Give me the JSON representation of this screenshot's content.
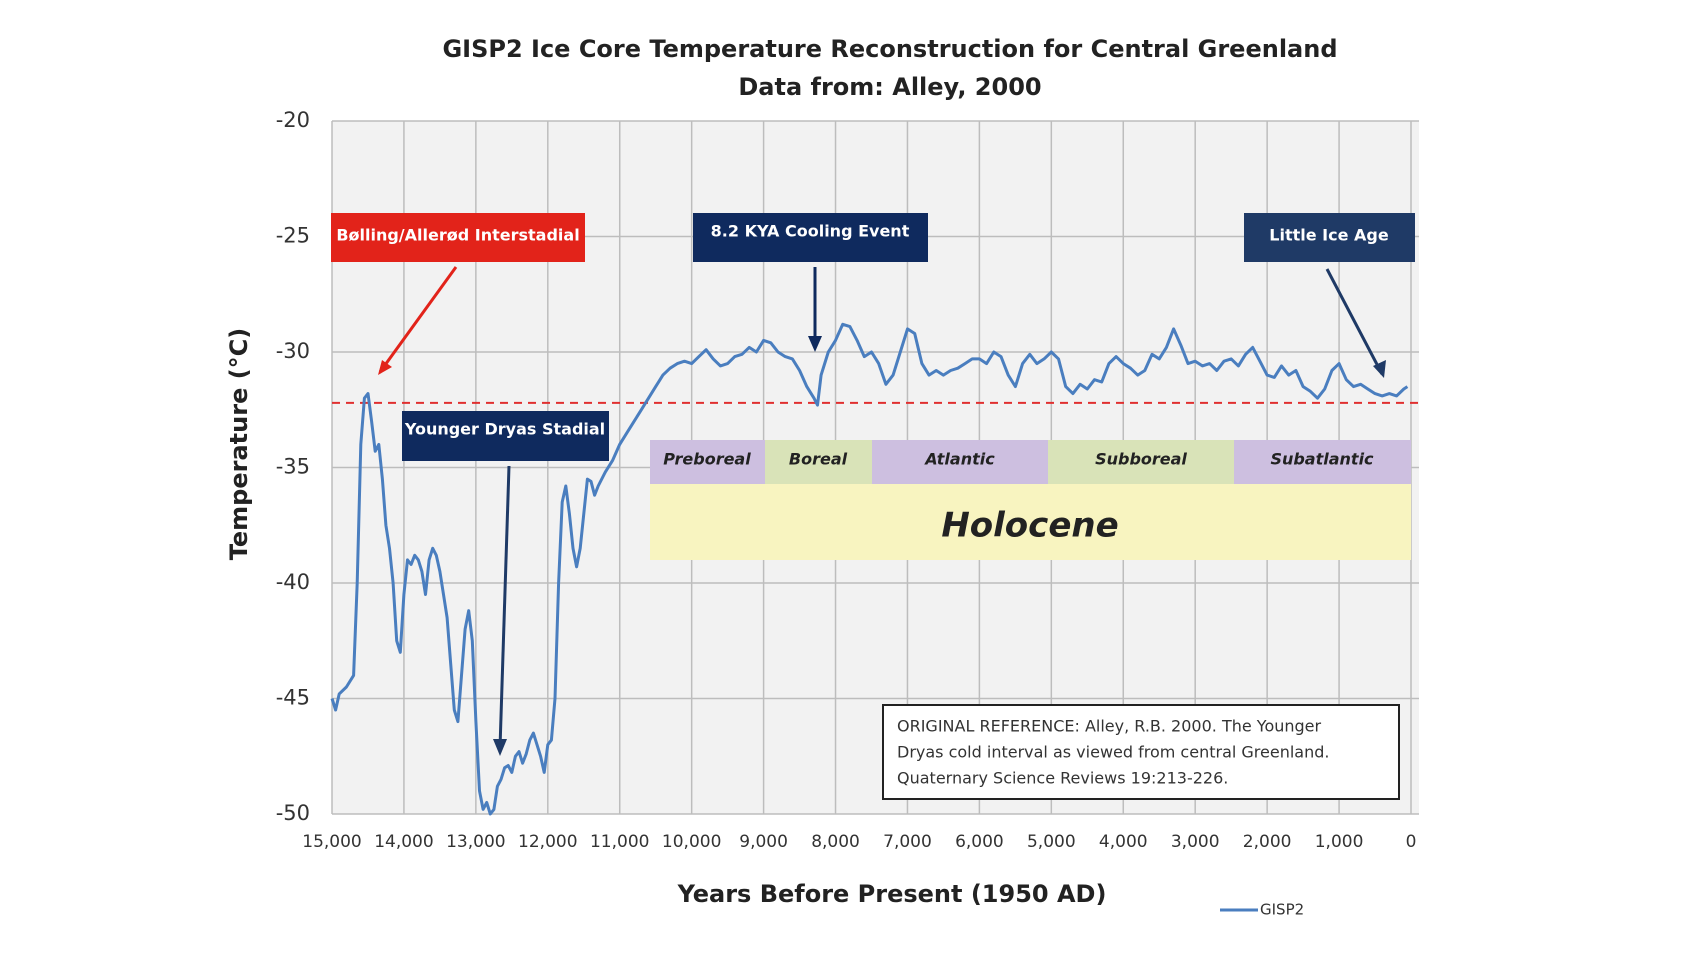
{
  "chart_data": {
    "type": "line",
    "title": "GISP2 Ice Core Temperature Reconstruction for Central Greenland",
    "subtitle": "Data from: Alley, 2000",
    "x_label": "Years Before Present (1950 AD)",
    "y_label": "Temperature (°C)",
    "xlim": [
      15000,
      0
    ],
    "ylim": [
      -50,
      -20
    ],
    "xticks": [
      {
        "value": 15000,
        "label": "15,000"
      },
      {
        "value": 14000,
        "label": "14,000"
      },
      {
        "value": 13000,
        "label": "13,000"
      },
      {
        "value": 12000,
        "label": "12,000"
      },
      {
        "value": 11000,
        "label": "11,000"
      },
      {
        "value": 10000,
        "label": "10,000"
      },
      {
        "value": 9000,
        "label": "9,000"
      },
      {
        "value": 8000,
        "label": "8,000"
      },
      {
        "value": 7000,
        "label": "7,000"
      },
      {
        "value": 6000,
        "label": "6,000"
      },
      {
        "value": 5000,
        "label": "5,000"
      },
      {
        "value": 4000,
        "label": "4,000"
      },
      {
        "value": 3000,
        "label": "3,000"
      },
      {
        "value": 2000,
        "label": "2,000"
      },
      {
        "value": 1000,
        "label": "1,000"
      },
      0
    ],
    "yticks": [
      -20,
      -25,
      -30,
      -35,
      -40,
      -45,
      -50
    ],
    "grid": true,
    "legend": "bottom-right",
    "reference_line": -32.2,
    "reference_line_color": "#e03030",
    "x": [
      15000,
      14950,
      14900,
      14800,
      14700,
      14650,
      14600,
      14550,
      14500,
      14450,
      14400,
      14350,
      14300,
      14250,
      14200,
      14150,
      14100,
      14050,
      14000,
      13950,
      13900,
      13850,
      13800,
      13750,
      13700,
      13650,
      13600,
      13550,
      13500,
      13450,
      13400,
      13350,
      13300,
      13250,
      13200,
      13150,
      13100,
      13050,
      13000,
      12950,
      12900,
      12850,
      12800,
      12750,
      12700,
      12650,
      12600,
      12550,
      12500,
      12450,
      12400,
      12350,
      12300,
      12250,
      12200,
      12150,
      12100,
      12050,
      12000,
      11950,
      11900,
      11850,
      11800,
      11750,
      11700,
      11650,
      11600,
      11550,
      11500,
      11450,
      11400,
      11350,
      11300,
      11200,
      11100,
      11000,
      10900,
      10800,
      10700,
      10600,
      10500,
      10400,
      10300,
      10200,
      10100,
      10000,
      9900,
      9800,
      9700,
      9600,
      9500,
      9400,
      9300,
      9200,
      9100,
      9000,
      8900,
      8800,
      8700,
      8600,
      8500,
      8400,
      8300,
      8250,
      8200,
      8100,
      8000,
      7900,
      7800,
      7700,
      7600,
      7500,
      7400,
      7300,
      7200,
      7100,
      7000,
      6900,
      6800,
      6700,
      6600,
      6500,
      6400,
      6300,
      6200,
      6100,
      6000,
      5900,
      5800,
      5700,
      5600,
      5500,
      5400,
      5300,
      5200,
      5100,
      5000,
      4900,
      4800,
      4700,
      4600,
      4500,
      4400,
      4300,
      4200,
      4100,
      4000,
      3900,
      3800,
      3700,
      3600,
      3500,
      3400,
      3300,
      3200,
      3100,
      3000,
      2900,
      2800,
      2700,
      2600,
      2500,
      2400,
      2300,
      2200,
      2100,
      2000,
      1900,
      1800,
      1700,
      1600,
      1500,
      1400,
      1300,
      1200,
      1100,
      1000,
      900,
      800,
      700,
      600,
      500,
      400,
      300,
      200,
      100,
      50
    ],
    "series": [
      {
        "name": "GISP2",
        "color": "#4a7ebf",
        "values": [
          -45,
          -45.5,
          -44.8,
          -44.5,
          -44,
          -40,
          -34,
          -32,
          -31.8,
          -33,
          -34.3,
          -34,
          -35.5,
          -37.5,
          -38.5,
          -40,
          -42.5,
          -43,
          -40.5,
          -39,
          -39.2,
          -38.8,
          -39,
          -39.5,
          -40.5,
          -39,
          -38.5,
          -38.8,
          -39.5,
          -40.5,
          -41.5,
          -43.5,
          -45.5,
          -46,
          -44,
          -42,
          -41.2,
          -42.5,
          -46,
          -49,
          -49.8,
          -49.5,
          -50,
          -49.8,
          -48.8,
          -48.5,
          -48,
          -47.9,
          -48.2,
          -47.5,
          -47.3,
          -47.8,
          -47.4,
          -46.8,
          -46.5,
          -47,
          -47.5,
          -48.2,
          -47,
          -46.8,
          -45,
          -40,
          -36.5,
          -35.8,
          -37,
          -38.5,
          -39.3,
          -38.5,
          -37,
          -35.5,
          -35.6,
          -36.2,
          -35.8,
          -35.2,
          -34.7,
          -34,
          -33.5,
          -33,
          -32.5,
          -32,
          -31.5,
          -31,
          -30.7,
          -30.5,
          -30.4,
          -30.5,
          -30.2,
          -29.9,
          -30.3,
          -30.6,
          -30.5,
          -30.2,
          -30.1,
          -29.8,
          -30,
          -29.5,
          -29.6,
          -30,
          -30.2,
          -30.3,
          -30.8,
          -31.5,
          -32,
          -32.3,
          -31,
          -30,
          -29.5,
          -28.8,
          -28.9,
          -29.5,
          -30.2,
          -30,
          -30.5,
          -31.4,
          -31,
          -30,
          -29,
          -29.2,
          -30.5,
          -31,
          -30.8,
          -31,
          -30.8,
          -30.7,
          -30.5,
          -30.3,
          -30.3,
          -30.5,
          -30,
          -30.2,
          -31,
          -31.5,
          -30.5,
          -30.1,
          -30.5,
          -30.3,
          -30,
          -30.3,
          -31.5,
          -31.8,
          -31.4,
          -31.6,
          -31.2,
          -31.3,
          -30.5,
          -30.2,
          -30.5,
          -30.7,
          -31,
          -30.8,
          -30.1,
          -30.3,
          -29.8,
          -29,
          -29.7,
          -30.5,
          -30.4,
          -30.6,
          -30.5,
          -30.8,
          -30.4,
          -30.3,
          -30.6,
          -30.1,
          -29.8,
          -30.4,
          -31,
          -31.1,
          -30.6,
          -31,
          -30.8,
          -31.5,
          -31.7,
          -32,
          -31.6,
          -30.8,
          -30.5,
          -31.2,
          -31.5,
          -31.4,
          -31.6,
          -31.8,
          -31.9,
          -31.8,
          -31.9,
          -31.6,
          -31.5
        ]
      }
    ],
    "annotations": {
      "bolling": "Bølling/Allerød Interstadial",
      "younger_dryas": "Younger Dryas Stadial",
      "cooling": "8.2 KYA Cooling Event",
      "little_ice_age": "Little Ice Age"
    },
    "periods": [
      "Preboreal",
      "Boreal",
      "Atlantic",
      "Subboreal",
      "Subatlantic"
    ],
    "epoch": "Holocene",
    "reference": [
      "ORIGINAL REFERENCE: Alley, R.B. 2000.  The Younger",
      "Dryas cold interval as viewed from central Greenland.",
      "Quaternary Science Reviews 19:213-226."
    ]
  }
}
